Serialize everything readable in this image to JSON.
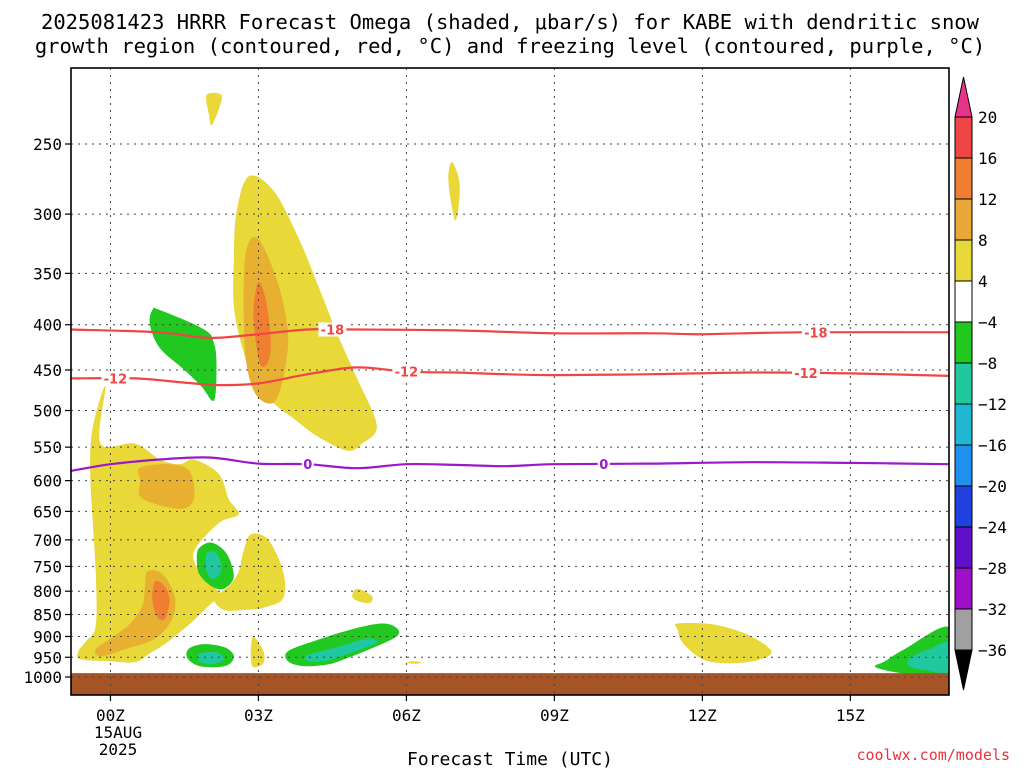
{
  "title_line1": "2025081423 HRRR Forecast Omega (shaded, μbar/s) for KABE with dendritic snow",
  "title_line2": "growth region (contoured, red, °C) and freezing level (contoured, purple, °C)",
  "xlabel": "Forecast Time (UTC)",
  "credit": "coolwx.com/models",
  "x_date_label_day": "15AUG",
  "x_date_label_year": "2025",
  "chart_data": {
    "type": "heatmap",
    "title": "2025081423 HRRR Forecast Omega (shaded, μbar/s) for KABE with dendritic snow growth region (contoured, red, °C) and freezing level (contoured, purple, °C)",
    "xlabel": "Forecast Time (UTC)",
    "ylabel": "",
    "x_hours_range": [
      -0.8,
      17
    ],
    "y_pressure_range": [
      1025,
      200
    ],
    "y_scale": "log-pressure",
    "grid": true,
    "x_ticks": [
      {
        "hour": 0,
        "label": "00Z"
      },
      {
        "hour": 3,
        "label": "03Z"
      },
      {
        "hour": 6,
        "label": "06Z"
      },
      {
        "hour": 9,
        "label": "09Z"
      },
      {
        "hour": 12,
        "label": "12Z"
      },
      {
        "hour": 15,
        "label": "15Z"
      }
    ],
    "y_ticks": [
      250,
      300,
      350,
      400,
      450,
      500,
      550,
      600,
      650,
      700,
      750,
      800,
      850,
      900,
      950,
      1000
    ],
    "colorbar": {
      "labels": [
        "20",
        "16",
        "12",
        "8",
        "4",
        "−4",
        "−8",
        "−12",
        "−16",
        "−20",
        "−24",
        "−28",
        "−32",
        "−36"
      ],
      "colors": [
        "#e8338a",
        "#f04545",
        "#f07e30",
        "#e8a838",
        "#e8d838",
        "#ffffff",
        "#20c820",
        "#20c8a0",
        "#20b8d0",
        "#1e90f0",
        "#2040e0",
        "#6010c8",
        "#a010c8",
        "#a0a0a0",
        "#000000"
      ]
    },
    "omega_regions": [
      {
        "level": "4",
        "color": "#e8d838",
        "points": [
          [
            1.95,
            220
          ],
          [
            2.25,
            220
          ],
          [
            2.2,
            228
          ],
          [
            2.05,
            238
          ],
          [
            2.0,
            232
          ]
        ]
      },
      {
        "level": "4",
        "color": "#e8d838",
        "points": [
          [
            6.92,
            262
          ],
          [
            7.05,
            272
          ],
          [
            7.08,
            285
          ],
          [
            7.0,
            305
          ],
          [
            6.9,
            290
          ],
          [
            6.85,
            272
          ]
        ]
      },
      {
        "level": "4",
        "color": "#e8d838",
        "points": [
          [
            2.8,
            272
          ],
          [
            3.3,
            282
          ],
          [
            3.8,
            318
          ],
          [
            4.2,
            360
          ],
          [
            4.6,
            410
          ],
          [
            5.0,
            460
          ],
          [
            5.4,
            520
          ],
          [
            5.1,
            545
          ],
          [
            4.8,
            555
          ],
          [
            4.2,
            535
          ],
          [
            3.7,
            510
          ],
          [
            3.3,
            490
          ],
          [
            2.9,
            460
          ],
          [
            2.65,
            420
          ],
          [
            2.5,
            380
          ],
          [
            2.5,
            340
          ],
          [
            2.55,
            300
          ]
        ]
      },
      {
        "level": "8",
        "color": "#e8b030",
        "points": [
          [
            2.75,
            330
          ],
          [
            3.0,
            320
          ],
          [
            3.4,
            360
          ],
          [
            3.6,
            410
          ],
          [
            3.5,
            460
          ],
          [
            3.3,
            490
          ],
          [
            2.95,
            480
          ],
          [
            2.75,
            440
          ],
          [
            2.7,
            380
          ]
        ]
      },
      {
        "level": "12",
        "color": "#f07e30",
        "points": [
          [
            3.0,
            358
          ],
          [
            3.15,
            375
          ],
          [
            3.25,
            415
          ],
          [
            3.2,
            440
          ],
          [
            3.05,
            445
          ],
          [
            2.95,
            420
          ],
          [
            2.9,
            385
          ]
        ]
      },
      {
        "level": "4",
        "color": "#e8d838",
        "points": [
          [
            -0.2,
            545
          ],
          [
            0.5,
            545
          ],
          [
            1.0,
            568
          ],
          [
            1.4,
            575
          ],
          [
            1.7,
            568
          ],
          [
            2.2,
            590
          ],
          [
            2.4,
            630
          ],
          [
            2.6,
            655
          ],
          [
            2.2,
            670
          ],
          [
            1.7,
            720
          ],
          [
            1.8,
            760
          ],
          [
            2.1,
            790
          ],
          [
            2.2,
            810
          ],
          [
            1.95,
            835
          ],
          [
            1.6,
            872
          ],
          [
            1.1,
            918
          ],
          [
            0.8,
            940
          ],
          [
            0.5,
            962
          ],
          [
            0.0,
            960
          ],
          [
            -0.6,
            955
          ],
          [
            -0.65,
            935
          ],
          [
            -0.5,
            912
          ],
          [
            -0.3,
            875
          ],
          [
            -0.3,
            760
          ],
          [
            -0.4,
            610
          ],
          [
            -0.4,
            545
          ],
          [
            -0.3,
            505
          ],
          [
            -0.1,
            470
          ]
        ]
      },
      {
        "level": "8",
        "color": "#e8b030",
        "points": [
          [
            0.6,
            580
          ],
          [
            1.2,
            575
          ],
          [
            1.6,
            585
          ],
          [
            1.7,
            625
          ],
          [
            1.5,
            645
          ],
          [
            1.0,
            640
          ],
          [
            0.6,
            625
          ],
          [
            0.6,
            600
          ]
        ]
      },
      {
        "level": "8",
        "color": "#e8b030",
        "points": [
          [
            0.75,
            760
          ],
          [
            1.05,
            765
          ],
          [
            1.3,
            810
          ],
          [
            1.25,
            860
          ],
          [
            0.9,
            905
          ],
          [
            0.3,
            930
          ],
          [
            -0.2,
            948
          ],
          [
            -0.3,
            930
          ],
          [
            0.0,
            905
          ],
          [
            0.4,
            870
          ],
          [
            0.65,
            830
          ],
          [
            0.7,
            790
          ]
        ]
      },
      {
        "level": "12",
        "color": "#f07e30",
        "points": [
          [
            0.9,
            780
          ],
          [
            1.1,
            790
          ],
          [
            1.2,
            820
          ],
          [
            1.1,
            860
          ],
          [
            0.95,
            855
          ],
          [
            0.85,
            820
          ]
        ]
      },
      {
        "level": "4",
        "color": "#e8d838",
        "points": [
          [
            2.85,
            690
          ],
          [
            3.2,
            700
          ],
          [
            3.5,
            760
          ],
          [
            3.5,
            815
          ],
          [
            3.1,
            835
          ],
          [
            2.7,
            840
          ],
          [
            2.3,
            840
          ],
          [
            2.1,
            815
          ],
          [
            2.4,
            790
          ],
          [
            2.6,
            760
          ],
          [
            2.7,
            720
          ]
        ]
      },
      {
        "level": "4",
        "color": "#e8d838",
        "points": [
          [
            2.9,
            900
          ],
          [
            3.1,
            935
          ],
          [
            3.1,
            965
          ],
          [
            2.9,
            975
          ],
          [
            2.85,
            955
          ],
          [
            2.85,
            925
          ]
        ]
      },
      {
        "level": "4",
        "color": "#e8d838",
        "points": [
          [
            5.0,
            795
          ],
          [
            5.3,
            810
          ],
          [
            5.25,
            825
          ],
          [
            5.0,
            820
          ],
          [
            4.9,
            810
          ]
        ]
      },
      {
        "level": "4",
        "color": "#e8d838",
        "points": [
          [
            6.1,
            960
          ],
          [
            6.3,
            962
          ],
          [
            6.2,
            966
          ],
          [
            6.0,
            964
          ]
        ]
      },
      {
        "level": "4",
        "color": "#e8d838",
        "points": [
          [
            11.5,
            870
          ],
          [
            12.2,
            872
          ],
          [
            12.9,
            895
          ],
          [
            13.4,
            935
          ],
          [
            13.1,
            958
          ],
          [
            12.5,
            965
          ],
          [
            12.0,
            955
          ],
          [
            11.6,
            915
          ],
          [
            11.5,
            885
          ]
        ]
      },
      {
        "level": "-4",
        "color": "#20c820",
        "points": [
          [
            0.85,
            385
          ],
          [
            1.0,
            385
          ],
          [
            1.9,
            405
          ],
          [
            2.1,
            420
          ],
          [
            2.15,
            445
          ],
          [
            2.1,
            487
          ],
          [
            1.85,
            470
          ],
          [
            1.5,
            450
          ],
          [
            1.0,
            425
          ],
          [
            0.8,
            400
          ]
        ]
      },
      {
        "level": "-4",
        "color": "#20c820",
        "points": [
          [
            1.8,
            715
          ],
          [
            2.05,
            705
          ],
          [
            2.35,
            725
          ],
          [
            2.5,
            770
          ],
          [
            2.3,
            795
          ],
          [
            2.05,
            790
          ],
          [
            1.8,
            765
          ],
          [
            1.75,
            735
          ]
        ]
      },
      {
        "level": "-8",
        "color": "#20c8a0",
        "points": [
          [
            1.95,
            725
          ],
          [
            2.15,
            725
          ],
          [
            2.25,
            755
          ],
          [
            2.1,
            775
          ],
          [
            1.95,
            760
          ]
        ]
      },
      {
        "level": "-4",
        "color": "#20c820",
        "points": [
          [
            1.6,
            928
          ],
          [
            1.9,
            918
          ],
          [
            2.3,
            925
          ],
          [
            2.5,
            945
          ],
          [
            2.4,
            968
          ],
          [
            2.1,
            975
          ],
          [
            1.75,
            970
          ],
          [
            1.55,
            950
          ]
        ]
      },
      {
        "level": "-8",
        "color": "#20c8a0",
        "points": [
          [
            1.8,
            942
          ],
          [
            2.15,
            938
          ],
          [
            2.3,
            955
          ],
          [
            2.05,
            968
          ],
          [
            1.8,
            960
          ]
        ]
      },
      {
        "level": "-4",
        "color": "#20c820",
        "points": [
          [
            3.6,
            935
          ],
          [
            4.2,
            908
          ],
          [
            4.9,
            883
          ],
          [
            5.5,
            870
          ],
          [
            5.8,
            880
          ],
          [
            5.8,
            900
          ],
          [
            5.3,
            928
          ],
          [
            4.8,
            952
          ],
          [
            4.4,
            968
          ],
          [
            3.9,
            972
          ],
          [
            3.6,
            960
          ]
        ]
      },
      {
        "level": "-8",
        "color": "#20c8a0",
        "points": [
          [
            4.0,
            945
          ],
          [
            4.6,
            925
          ],
          [
            5.2,
            905
          ],
          [
            5.4,
            915
          ],
          [
            4.9,
            938
          ],
          [
            4.4,
            958
          ],
          [
            4.0,
            960
          ]
        ]
      },
      {
        "level": "-4",
        "color": "#20c820",
        "points": [
          [
            15.7,
            960
          ],
          [
            16.1,
            930
          ],
          [
            17.0,
            878
          ],
          [
            17.0,
            992
          ],
          [
            16.3,
            993
          ],
          [
            15.8,
            985
          ],
          [
            15.5,
            973
          ]
        ]
      },
      {
        "level": "-8",
        "color": "#20c8a0",
        "points": [
          [
            16.2,
            952
          ],
          [
            16.6,
            930
          ],
          [
            17.0,
            915
          ],
          [
            17.0,
            985
          ],
          [
            16.5,
            982
          ],
          [
            16.2,
            972
          ]
        ]
      }
    ],
    "surface_region": {
      "pressure_from": 990,
      "color": "#a65426"
    },
    "contours": [
      {
        "value": "-18",
        "color": "#f04545",
        "label": "-18",
        "label_hours": [
          4.5,
          14.3
        ],
        "points": [
          [
            -0.8,
            405
          ],
          [
            1.0,
            408
          ],
          [
            2.0,
            414
          ],
          [
            3.0,
            410
          ],
          [
            4.0,
            405
          ],
          [
            5.0,
            405
          ],
          [
            7.0,
            406
          ],
          [
            9.0,
            409
          ],
          [
            11.0,
            409
          ],
          [
            12.0,
            410
          ],
          [
            14.0,
            408
          ],
          [
            17.0,
            408
          ]
        ]
      },
      {
        "value": "-12",
        "color": "#f04545",
        "label": "-12",
        "label_hours": [
          0.1,
          6.0,
          14.1
        ],
        "points": [
          [
            -0.8,
            460
          ],
          [
            0.5,
            460
          ],
          [
            1.5,
            465
          ],
          [
            2.2,
            468
          ],
          [
            3.0,
            466
          ],
          [
            4.0,
            455
          ],
          [
            5.0,
            447
          ],
          [
            6.0,
            452
          ],
          [
            7.0,
            453
          ],
          [
            8.0,
            455
          ],
          [
            9.0,
            456
          ],
          [
            11.0,
            455
          ],
          [
            13.0,
            453
          ],
          [
            15.0,
            454
          ],
          [
            17.0,
            457
          ]
        ]
      },
      {
        "value": "0",
        "color": "#9b19c8",
        "label": "0",
        "label_hours": [
          4.0,
          10.0
        ],
        "points": [
          [
            -0.8,
            585
          ],
          [
            0.0,
            575
          ],
          [
            1.0,
            568
          ],
          [
            2.0,
            565
          ],
          [
            3.0,
            574
          ],
          [
            4.0,
            575
          ],
          [
            5.0,
            581
          ],
          [
            6.0,
            575
          ],
          [
            7.0,
            576
          ],
          [
            8.0,
            578
          ],
          [
            9.0,
            575
          ],
          [
            11.0,
            574
          ],
          [
            13.0,
            572
          ],
          [
            15.0,
            573
          ],
          [
            17.0,
            575
          ]
        ]
      }
    ]
  }
}
